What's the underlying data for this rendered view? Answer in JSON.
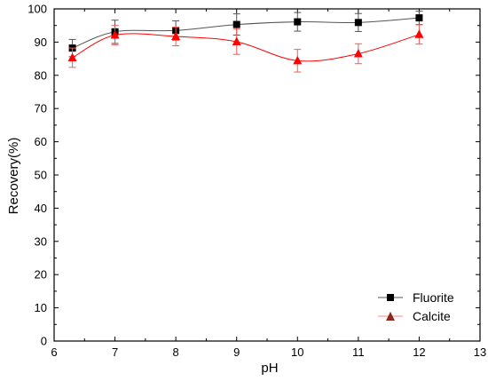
{
  "chart_data": {
    "type": "line",
    "xlabel": "pH",
    "ylabel": "Recovery(%)",
    "xlim": [
      6,
      13
    ],
    "ylim": [
      0,
      100
    ],
    "xticks": [
      6,
      7,
      8,
      9,
      10,
      11,
      12,
      13
    ],
    "yticks": [
      0,
      10,
      20,
      30,
      40,
      50,
      60,
      70,
      80,
      90,
      100
    ],
    "grid": false,
    "legend_position": "bottom-right",
    "series": [
      {
        "name": "Fluorite",
        "marker": "square",
        "color": "#000000",
        "line_color": "#555555",
        "x": [
          6.3,
          7,
          8,
          9,
          10,
          11,
          12
        ],
        "y": [
          88.2,
          93.1,
          93.5,
          95.3,
          96.1,
          95.9,
          97.3
        ],
        "error": [
          2.6,
          3.5,
          2.9,
          3.2,
          2.8,
          2.7,
          2.0
        ]
      },
      {
        "name": "Calcite",
        "marker": "triangle",
        "color": "#ff0000",
        "line_color": "#ff0000",
        "legend_marker_color": "#8b2a1a",
        "x": [
          6.3,
          7,
          8,
          9,
          10,
          11,
          12
        ],
        "y": [
          85.3,
          92.1,
          91.7,
          90.1,
          84.4,
          86.5,
          92.3
        ],
        "error": [
          2.9,
          2.9,
          2.8,
          3.8,
          3.4,
          3.0,
          2.9
        ]
      }
    ]
  }
}
